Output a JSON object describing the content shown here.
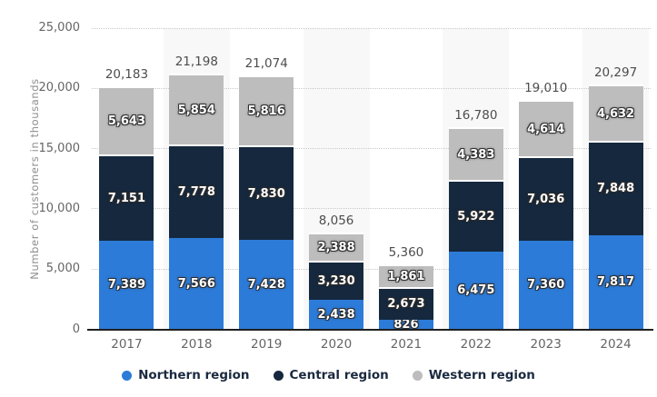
{
  "chart_data": {
    "type": "bar",
    "stacked": true,
    "title": "",
    "xlabel": "",
    "ylabel": "Number of customers in thousands",
    "ylim": [
      0,
      25000
    ],
    "ytick_interval": 5000,
    "ytick_labels": [
      "0",
      "5,000",
      "10,000",
      "15,000",
      "20,000",
      "25,000"
    ],
    "grid": "horizontal-dotted",
    "legend_position": "bottom",
    "categories": [
      "2017",
      "2018",
      "2019",
      "2020",
      "2021",
      "2022",
      "2023",
      "2024"
    ],
    "series": [
      {
        "name": "Northern region",
        "color": "#2d7bd8",
        "values": [
          7389,
          7566,
          7428,
          2438,
          826,
          6475,
          7360,
          7817
        ]
      },
      {
        "name": "Central region",
        "color": "#15283e",
        "values": [
          7151,
          7778,
          7830,
          3230,
          2673,
          5922,
          7036,
          7848
        ]
      },
      {
        "name": "Western region",
        "color": "#bdbdbd",
        "values": [
          5643,
          5854,
          5816,
          2388,
          1861,
          4383,
          4614,
          4632
        ]
      }
    ],
    "totals": [
      20183,
      21198,
      21074,
      8056,
      5360,
      16780,
      19010,
      20297
    ],
    "highlighted_columns": [
      "2018",
      "2020",
      "2022",
      "2024"
    ]
  },
  "styles": {
    "band_color": "#f8f8f8",
    "grid_color": "#c9c9c9",
    "axis_color": "#1f1f1f",
    "tick_text_color": "#666666",
    "total_label_color": "#4d4d4d",
    "bar_label_color": "#ffffff",
    "x_label_color": "#666666",
    "legend_text_color": "#1b2a40",
    "y_axis_title_color": "#8f8f8f",
    "background_color": "#ffffff"
  }
}
